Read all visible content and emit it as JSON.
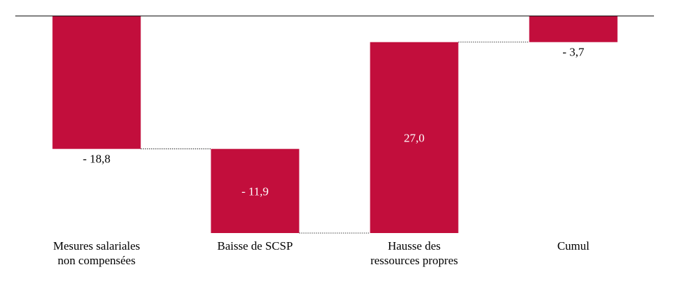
{
  "chart_data": {
    "type": "bar",
    "categories": [
      [
        "Mesures salariales",
        "non compensées"
      ],
      [
        "Baisse de SCSP"
      ],
      [
        "Hausse des",
        "ressources propres"
      ],
      [
        "Cumul"
      ]
    ],
    "values": [
      -18.8,
      -11.9,
      27.0,
      -3.7
    ],
    "value_labels": [
      "- 18,8",
      "- 11,9",
      "27,0",
      "- 3,7"
    ],
    "label_positions": [
      "below",
      "inside",
      "inside",
      "below"
    ],
    "waterfall": true,
    "ylim": [
      -30.7,
      0
    ],
    "colors": {
      "bar": "#c20e3c",
      "axis": "#000000",
      "connector": "#000000",
      "inside_label": "#ffffff",
      "outside_label": "#000000"
    },
    "title": "",
    "xlabel": "",
    "ylabel": ""
  }
}
